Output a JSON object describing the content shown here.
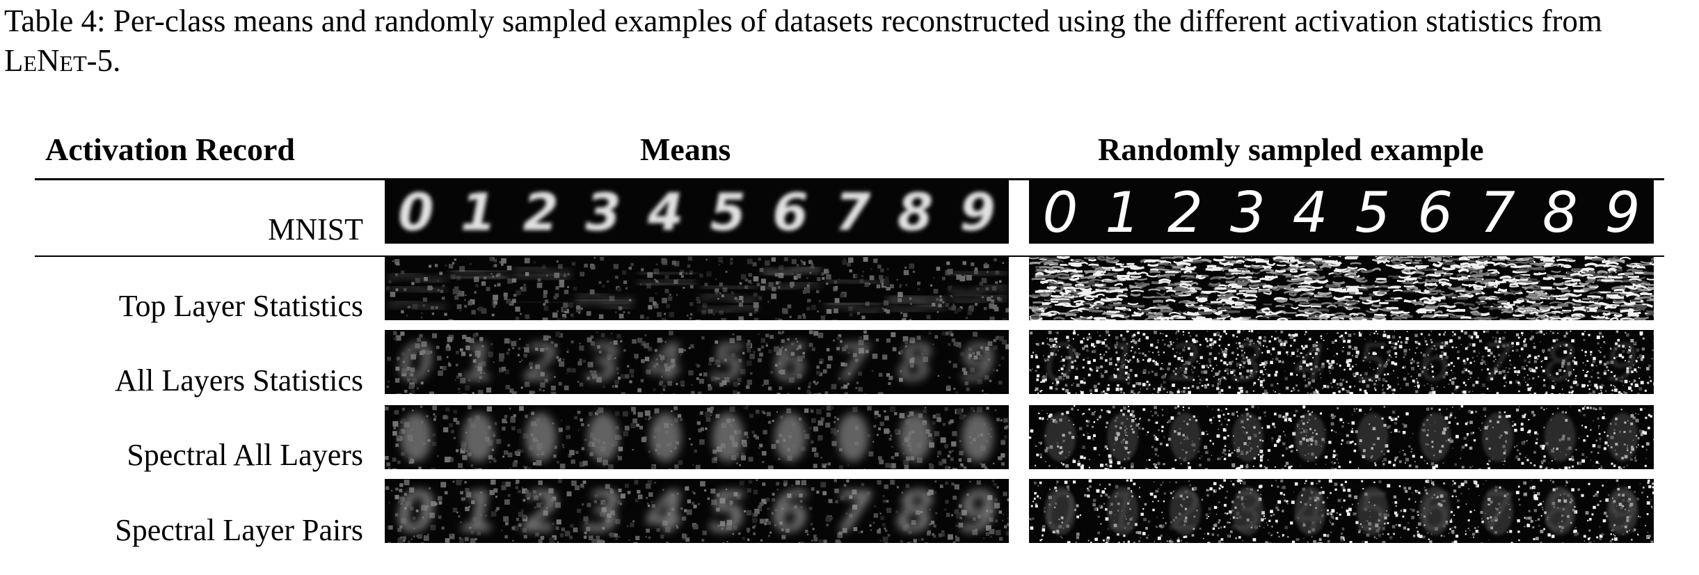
{
  "caption": {
    "prefix": "Table 4: Per-class means and randomly sampled examples of datasets reconstructed using the different activation statistics from ",
    "model": "LeNet",
    "model_suffix": "-5."
  },
  "columns": {
    "record": "Activation Record",
    "means": "Means",
    "random": "Randomly sampled example"
  },
  "digits": [
    "0",
    "1",
    "2",
    "3",
    "4",
    "5",
    "6",
    "7",
    "8",
    "9"
  ],
  "rows": [
    {
      "label": "MNIST",
      "style": "clean"
    },
    {
      "label": "Top Layer Statistics",
      "style": "wavy"
    },
    {
      "label": "All Layers Statistics",
      "style": "faint-digits"
    },
    {
      "label": "Spectral All Layers",
      "style": "blob"
    },
    {
      "label": "Spectral Layer Pairs",
      "style": "blob-digits"
    }
  ]
}
